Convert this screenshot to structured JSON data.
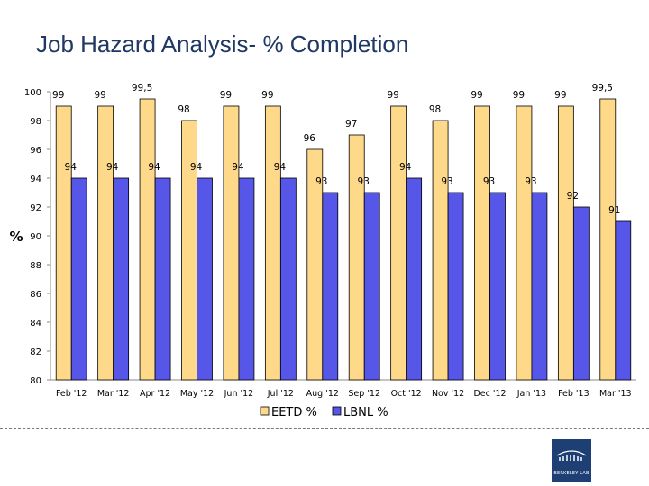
{
  "page": {
    "title": "Job Hazard Analysis- % Completion",
    "logo_text": "BERKELEY LAB"
  },
  "chart_data": {
    "type": "bar",
    "title": "Job Hazard Analysis- % Completion",
    "ylabel": "%",
    "xlabel": "",
    "ylim": [
      80,
      100
    ],
    "yticks": [
      80,
      82,
      84,
      86,
      88,
      90,
      92,
      94,
      96,
      98,
      100
    ],
    "categories": [
      "Feb '12",
      "Mar '12",
      "Apr '12",
      "May '12",
      "Jun '12",
      "Jul '12",
      "Aug '12",
      "Sep '12",
      "Oct '12",
      "Nov '12",
      "Dec '12",
      "Jan '13",
      "Feb '13",
      "Mar '13"
    ],
    "series": [
      {
        "name": "EETD %",
        "color": "#ffd98a",
        "values": [
          99,
          99,
          99.5,
          98,
          99,
          99,
          96,
          97,
          99,
          98,
          99,
          99,
          99,
          99.5
        ],
        "labels": [
          "99",
          "99",
          "99,5",
          "98",
          "99",
          "99",
          "96",
          "97",
          "99",
          "98",
          "99",
          "99",
          "99",
          "99,5"
        ]
      },
      {
        "name": "LBNL %",
        "color": "#5656e8",
        "values": [
          94,
          94,
          94,
          94,
          94,
          94,
          93,
          93,
          94,
          93,
          93,
          93,
          92,
          91
        ],
        "labels": [
          "94",
          "94",
          "94",
          "94",
          "94",
          "94",
          "93",
          "93",
          "94",
          "93",
          "93",
          "93",
          "92",
          "91"
        ]
      }
    ],
    "legend": "bottom",
    "grid": false
  }
}
